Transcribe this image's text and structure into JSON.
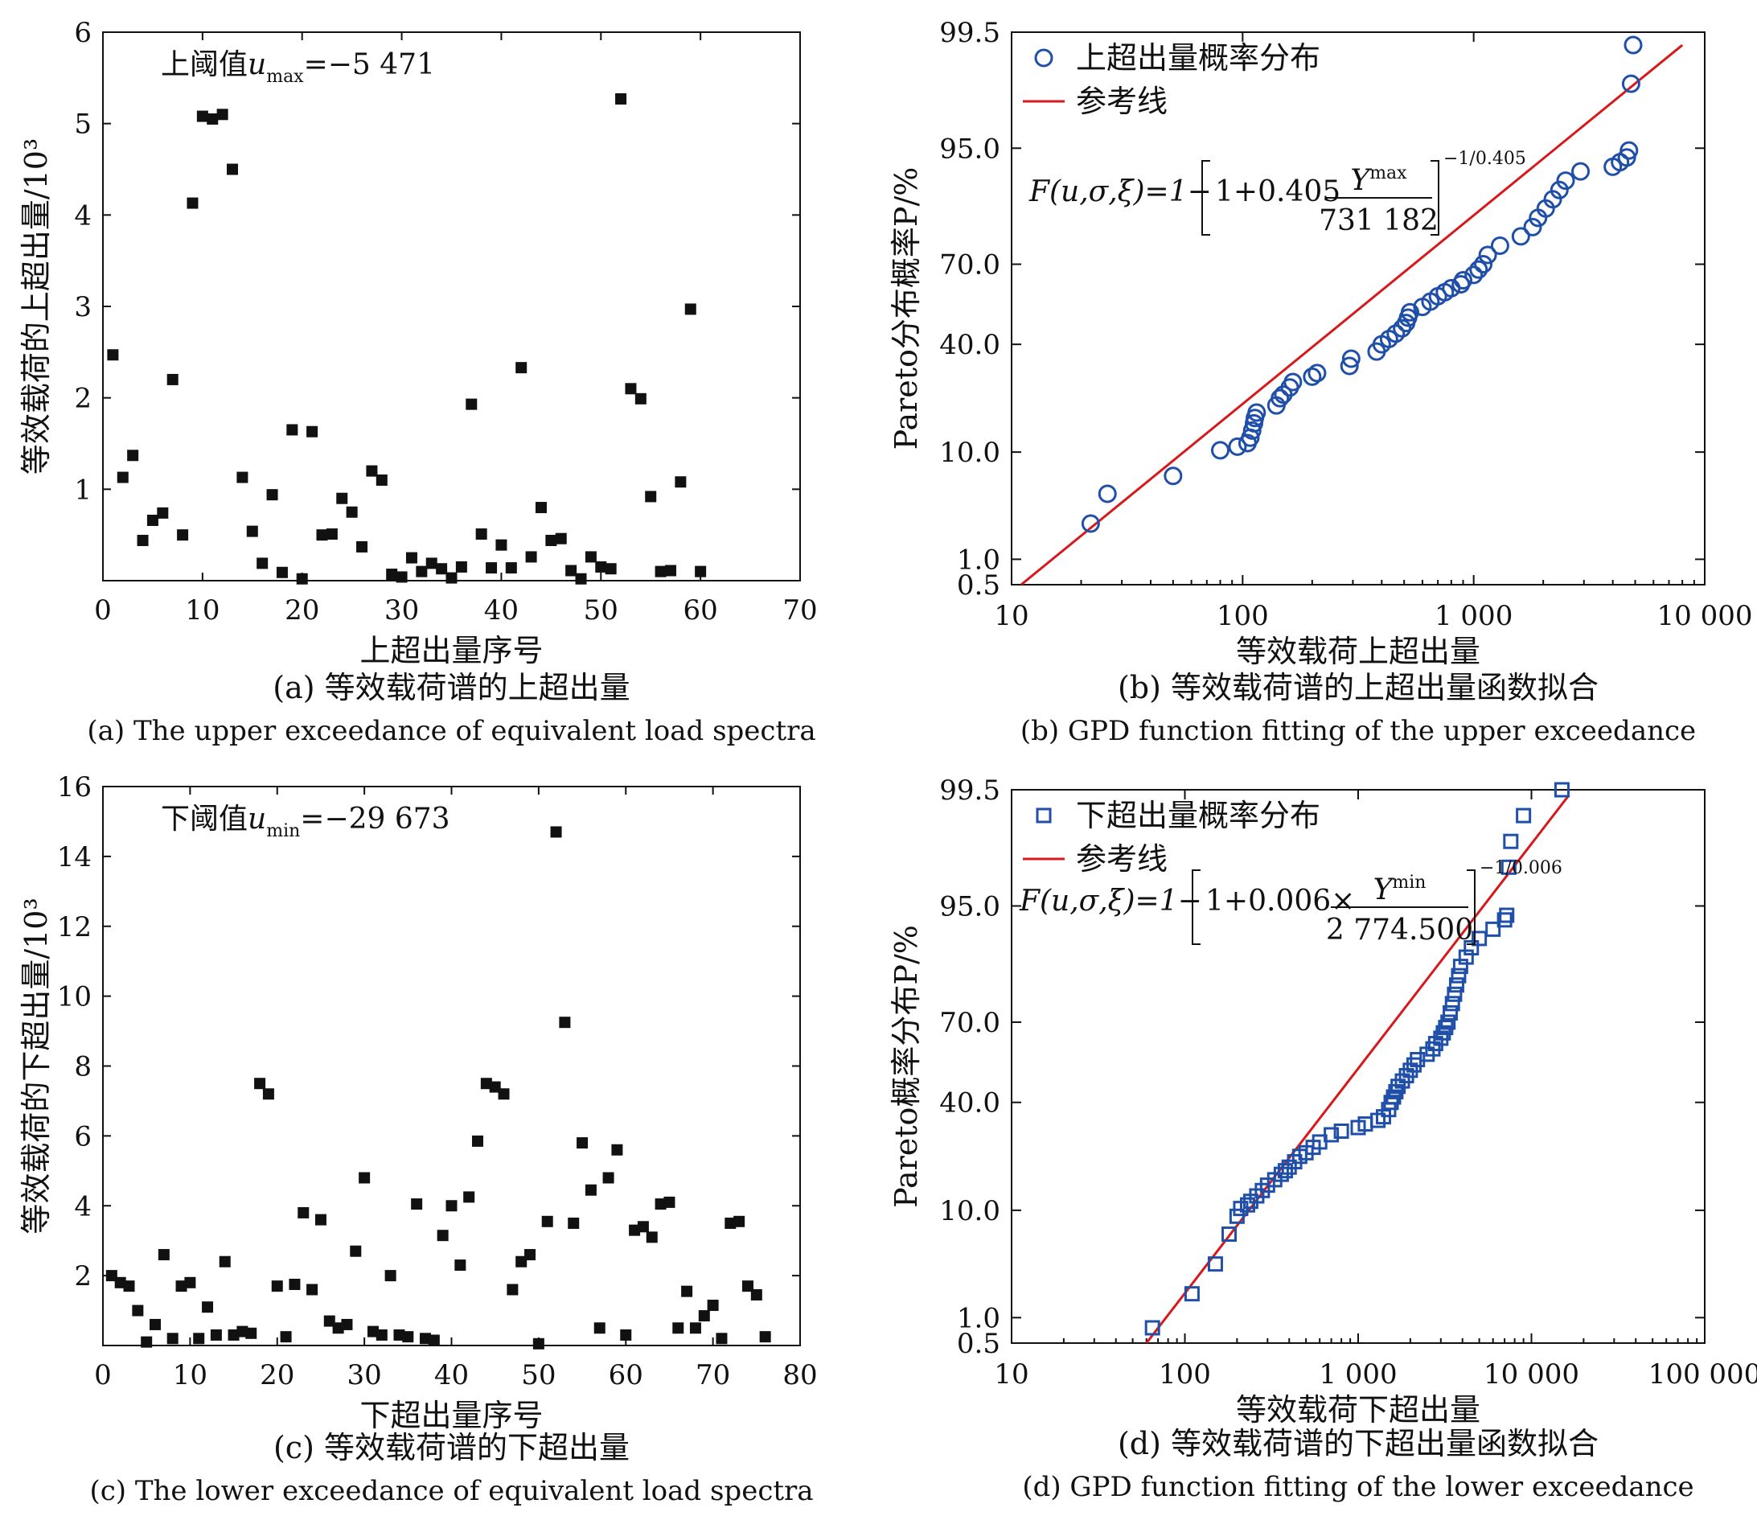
{
  "chart_data": [
    {
      "id": "a",
      "type": "scatter",
      "caption_cn": "(a) 等效载荷谱的上超出量",
      "caption_en": "(a) The upper exceedance of equivalent load spectra",
      "xlabel": "上超出量序号",
      "ylabel": "等效载荷的上超出量/10³",
      "xlim": [
        0,
        70
      ],
      "ylim": [
        0,
        6
      ],
      "xticks": [
        "0",
        "10",
        "20",
        "30",
        "40",
        "50",
        "60",
        "70"
      ],
      "yticks": [
        "1",
        "2",
        "3",
        "4",
        "5",
        "6"
      ],
      "annotation": {
        "prefix": "上阈值",
        "var": "u",
        "sub": "max",
        "value": "=−5 471"
      },
      "marker_color": "#111111",
      "x": [
        1,
        2,
        3,
        4,
        5,
        6,
        7,
        8,
        9,
        10,
        11,
        12,
        13,
        14,
        15,
        16,
        17,
        18,
        19,
        20,
        21,
        22,
        23,
        24,
        25,
        26,
        27,
        28,
        29,
        30,
        31,
        32,
        33,
        34,
        35,
        36,
        37,
        38,
        39,
        40,
        41,
        42,
        43,
        44,
        45,
        46,
        47,
        48,
        49,
        50,
        51,
        52,
        53,
        54,
        55,
        56,
        57,
        58,
        59,
        60
      ],
      "y": [
        2.47,
        1.13,
        1.37,
        0.44,
        0.66,
        0.74,
        2.2,
        0.5,
        4.13,
        5.08,
        5.05,
        5.1,
        4.5,
        1.13,
        0.54,
        0.19,
        0.94,
        0.09,
        1.65,
        0.02,
        1.63,
        0.5,
        0.51,
        0.9,
        0.75,
        0.37,
        1.2,
        1.1,
        0.07,
        0.04,
        0.25,
        0.1,
        0.19,
        0.13,
        0.03,
        0.15,
        1.93,
        0.51,
        0.14,
        0.39,
        0.14,
        2.33,
        0.26,
        0.8,
        0.44,
        0.46,
        0.11,
        0.02,
        0.26,
        0.15,
        0.13,
        5.27,
        2.1,
        1.99,
        0.92,
        0.1,
        0.11,
        1.08,
        2.97,
        0.1
      ]
    },
    {
      "id": "b",
      "type": "scatter",
      "caption_cn": "(b) 等效载荷谱的上超出量函数拟合",
      "caption_en": "(b) GPD function fitting of the upper exceedance",
      "xlabel": "等效载荷上超出量",
      "ylabel": "Pareto分布概率P/%",
      "x_scale": "log",
      "xlim": [
        10,
        10000
      ],
      "xticks": [
        "10",
        "100",
        "1 000",
        "10 000"
      ],
      "yticks": [
        "0.5",
        "1.0",
        "10.0",
        "40.0",
        "70.0",
        "95.0",
        "99.5"
      ],
      "legend": {
        "points": "上超出量概率分布",
        "line": "参考线",
        "position": "top-left"
      },
      "formula": {
        "lhs": "F(u,σ,ξ)=1−",
        "coef": "1+0.405",
        "num": "Y",
        "num_sup": "max",
        "den": "731 182",
        "exp": "−1/0.405"
      },
      "marker": "circle",
      "marker_color": "#1f4fa8",
      "line_color": "#d7191c",
      "reference_line": {
        "x": [
          11,
          8000
        ],
        "p": [
          0.5,
          99.0
        ]
      },
      "x": [
        22,
        26,
        50,
        80,
        95,
        105,
        108,
        110,
        112,
        113,
        115,
        140,
        145,
        150,
        160,
        165,
        200,
        210,
        290,
        295,
        380,
        400,
        430,
        460,
        490,
        510,
        520,
        530,
        600,
        650,
        700,
        750,
        800,
        880,
        900,
        1000,
        1050,
        1100,
        1150,
        1300,
        1600,
        1800,
        1900,
        2050,
        2200,
        2350,
        2500,
        2900,
        4000,
        4300,
        4600,
        4700,
        4800,
        4900
      ],
      "y": [
        4.0,
        6.5,
        8.0,
        10.5,
        11.5,
        12.5,
        14.0,
        16.0,
        18.0,
        19.5,
        21.0,
        23.0,
        25.0,
        26.0,
        28.0,
        29.5,
        31.0,
        32.0,
        34.0,
        36.0,
        38.0,
        40.0,
        42.0,
        44.0,
        46.0,
        48.0,
        50.0,
        52.0,
        54.0,
        56.0,
        58.0,
        59.5,
        61.0,
        62.5,
        64.0,
        66.0,
        68.0,
        70.0,
        72.0,
        74.0,
        76.0,
        78.0,
        80.0,
        82.0,
        84.0,
        86.0,
        88.0,
        90.0,
        91.0,
        92.0,
        93.0,
        94.5,
        97.5,
        99.0
      ]
    },
    {
      "id": "c",
      "type": "scatter",
      "caption_cn": "(c) 等效载荷谱的下超出量",
      "caption_en": "(c) The lower exceedance of equivalent load spectra",
      "xlabel": "下超出量序号",
      "ylabel": "等效载荷的下超出量/10³",
      "xlim": [
        0,
        80
      ],
      "ylim": [
        0,
        16
      ],
      "xticks": [
        "0",
        "10",
        "20",
        "30",
        "40",
        "50",
        "60",
        "70",
        "80"
      ],
      "yticks": [
        "2",
        "4",
        "6",
        "8",
        "10",
        "12",
        "14",
        "16"
      ],
      "annotation": {
        "prefix": "下阈值",
        "var": "u",
        "sub": "min",
        "value": "=−29 673"
      },
      "marker_color": "#111111",
      "x": [
        1,
        2,
        3,
        4,
        5,
        6,
        7,
        8,
        9,
        10,
        11,
        12,
        13,
        14,
        15,
        16,
        17,
        18,
        19,
        20,
        21,
        22,
        23,
        24,
        25,
        26,
        27,
        28,
        29,
        30,
        31,
        32,
        33,
        34,
        35,
        36,
        37,
        38,
        39,
        40,
        41,
        42,
        43,
        44,
        45,
        46,
        47,
        48,
        49,
        50,
        51,
        52,
        53,
        54,
        55,
        56,
        57,
        58,
        59,
        60,
        61,
        62,
        63,
        64,
        65,
        66,
        67,
        68,
        69,
        70,
        71,
        72,
        73,
        74,
        75,
        76
      ],
      "y": [
        2.0,
        1.8,
        1.7,
        1.0,
        0.1,
        0.6,
        2.6,
        0.2,
        1.7,
        1.8,
        0.2,
        1.1,
        0.3,
        2.4,
        0.3,
        0.4,
        0.35,
        7.5,
        7.2,
        1.7,
        0.25,
        1.75,
        3.8,
        1.6,
        3.6,
        0.7,
        0.5,
        0.6,
        2.7,
        4.8,
        0.4,
        0.3,
        2.0,
        0.3,
        0.25,
        4.05,
        0.2,
        0.15,
        3.15,
        4.0,
        2.3,
        4.25,
        5.85,
        7.5,
        7.4,
        7.2,
        1.6,
        2.4,
        2.6,
        0.05,
        3.55,
        14.7,
        9.25,
        3.5,
        5.8,
        4.45,
        0.5,
        4.8,
        5.6,
        0.3,
        3.3,
        3.4,
        3.1,
        4.05,
        4.1,
        0.5,
        1.55,
        0.5,
        0.85,
        1.15,
        0.2,
        3.5,
        3.55,
        1.7,
        1.45,
        0.25
      ]
    },
    {
      "id": "d",
      "type": "scatter",
      "caption_cn": "(d) 等效载荷谱的下超出量函数拟合",
      "caption_en": "(d) GPD function fitting of the lower exceedance",
      "xlabel": "等效载荷下超出量",
      "ylabel": "Pareto概率分布P/%",
      "x_scale": "log",
      "xlim": [
        10,
        100000
      ],
      "xticks": [
        "10",
        "100",
        "1 000",
        "10 000",
        "100 000"
      ],
      "yticks": [
        "0.5",
        "1.0",
        "10.0",
        "40.0",
        "70.0",
        "95.0",
        "99.5"
      ],
      "legend": {
        "points": "下超出量概率分布",
        "line": "参考线",
        "position": "top-left"
      },
      "formula": {
        "lhs": "F(u,σ,ξ)=1−",
        "coef": "1+0.006×",
        "num": "Y",
        "num_sup": "min",
        "den": "2 774.500",
        "exp": "−1/0.006"
      },
      "marker": "square",
      "marker_color": "#1f4fa8",
      "line_color": "#d7191c",
      "reference_line": {
        "x": [
          60,
          16500
        ],
        "p": [
          0.4,
          99.3
        ]
      },
      "x": [
        65,
        110,
        150,
        180,
        200,
        210,
        230,
        240,
        260,
        280,
        300,
        330,
        360,
        380,
        400,
        430,
        460,
        500,
        550,
        600,
        700,
        800,
        1000,
        1100,
        1300,
        1400,
        1500,
        1550,
        1600,
        1650,
        1700,
        1800,
        1900,
        2000,
        2100,
        2200,
        2500,
        2700,
        2800,
        3000,
        3100,
        3200,
        3300,
        3400,
        3500,
        3600,
        3700,
        3800,
        3900,
        4200,
        4500,
        5000,
        6000,
        7000,
        7200,
        7400,
        7600,
        9000,
        15000
      ],
      "y": [
        0.8,
        3.0,
        5.5,
        8.0,
        9.5,
        10.5,
        11.5,
        12.5,
        14.0,
        15.5,
        17.0,
        18.5,
        20.0,
        21.0,
        22.0,
        23.5,
        25.0,
        26.0,
        27.5,
        29.0,
        31.0,
        32.0,
        33.0,
        34.0,
        35.0,
        36.0,
        38.0,
        40.0,
        42.0,
        44.0,
        46.0,
        48.0,
        50.0,
        52.0,
        54.0,
        56.0,
        58.0,
        60.0,
        62.0,
        64.0,
        66.0,
        68.0,
        70.0,
        72.0,
        74.0,
        76.0,
        78.0,
        80.0,
        82.0,
        84.0,
        86.0,
        88.0,
        90.0,
        92.0,
        93.0,
        96.5,
        97.5,
        98.5,
        99.5
      ]
    }
  ]
}
